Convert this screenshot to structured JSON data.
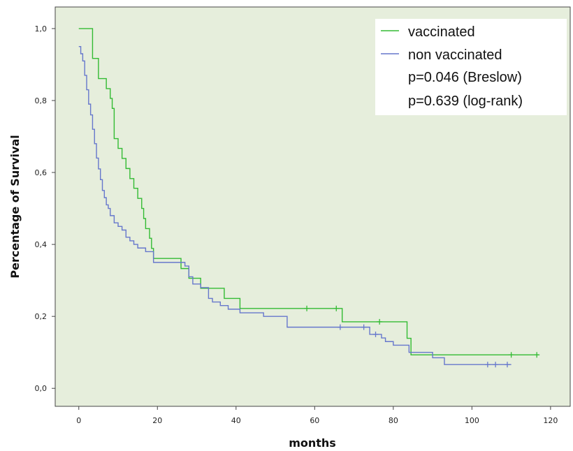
{
  "chart_data": {
    "type": "line",
    "step": true,
    "xlabel": "months",
    "ylabel": "Percentage of Survival",
    "xlim": [
      -6,
      125
    ],
    "ylim": [
      -0.05,
      1.06
    ],
    "x_ticks": [
      0,
      20,
      40,
      60,
      80,
      100,
      120
    ],
    "y_ticks": [
      0.0,
      0.2,
      0.4,
      0.6,
      0.8,
      1.0
    ],
    "y_tick_labels": [
      "0,0",
      "0,2",
      "0,4",
      "0,6",
      "0,8",
      "1,0"
    ],
    "grid": false,
    "plot_background": "#e6eedc",
    "legend_position": "top-right",
    "series": [
      {
        "name": "vaccinated",
        "color": "#33bb33",
        "x": [
          0,
          3.5,
          5,
          7,
          8,
          8.5,
          9,
          10,
          11,
          12,
          13,
          14,
          15,
          16,
          16.5,
          17,
          18,
          18.5,
          19,
          20,
          21,
          26,
          28,
          29,
          31,
          35,
          37,
          40,
          41,
          66,
          67,
          83.5,
          84.5,
          117
        ],
        "y": [
          1.0,
          0.917,
          0.861,
          0.833,
          0.806,
          0.778,
          0.694,
          0.667,
          0.639,
          0.611,
          0.583,
          0.556,
          0.528,
          0.5,
          0.472,
          0.444,
          0.417,
          0.389,
          0.361,
          0.361,
          0.361,
          0.333,
          0.306,
          0.306,
          0.278,
          0.278,
          0.25,
          0.25,
          0.222,
          0.222,
          0.185,
          0.139,
          0.093,
          0.093
        ],
        "censored": [
          58,
          65.5,
          76.5,
          110,
          116.5
        ],
        "censored_y": [
          0.222,
          0.222,
          0.185,
          0.093,
          0.093
        ]
      },
      {
        "name": "non vaccinated",
        "color": "#6677cc",
        "x": [
          0,
          0.5,
          1,
          1.5,
          2,
          2.5,
          3,
          3.5,
          4,
          4.5,
          5,
          5.5,
          6,
          6.5,
          7,
          7.5,
          8,
          9,
          10,
          11,
          12,
          13,
          14,
          15,
          17,
          19,
          21,
          23,
          26,
          27,
          28,
          29,
          31,
          33,
          34,
          36,
          38,
          41,
          42,
          47,
          53,
          58,
          66,
          68,
          74,
          75,
          77,
          78,
          80,
          84,
          90,
          93,
          110
        ],
        "y": [
          0.95,
          0.93,
          0.91,
          0.87,
          0.83,
          0.79,
          0.76,
          0.72,
          0.68,
          0.64,
          0.61,
          0.58,
          0.55,
          0.53,
          0.51,
          0.5,
          0.48,
          0.46,
          0.45,
          0.44,
          0.42,
          0.41,
          0.4,
          0.39,
          0.38,
          0.35,
          0.35,
          0.35,
          0.35,
          0.34,
          0.31,
          0.29,
          0.28,
          0.25,
          0.24,
          0.23,
          0.22,
          0.21,
          0.21,
          0.2,
          0.17,
          0.17,
          0.17,
          0.17,
          0.15,
          0.15,
          0.14,
          0.13,
          0.12,
          0.1,
          0.085,
          0.066,
          0.066
        ],
        "censored": [
          66.5,
          72.5,
          75.5,
          104,
          106,
          109
        ],
        "censored_y": [
          0.17,
          0.17,
          0.15,
          0.066,
          0.066,
          0.066
        ]
      }
    ],
    "annotations": [
      "p=0.046 (Breslow)",
      "p=0.639 (log-rank)"
    ]
  }
}
